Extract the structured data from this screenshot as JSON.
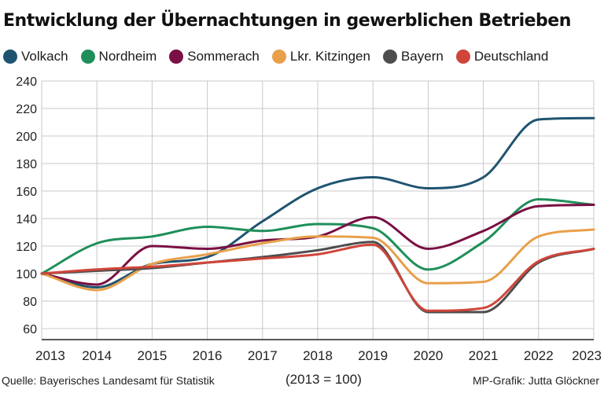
{
  "chart_data": {
    "type": "line",
    "title": "Entwicklung der Übernachtungen in gewerblichen Betrieben",
    "x": [
      "2013",
      "2014",
      "2015",
      "2016",
      "2017",
      "2018",
      "2019",
      "2020",
      "2021",
      "2022",
      "2023"
    ],
    "ylim": [
      60,
      240
    ],
    "yticks": [
      "60",
      "80",
      "100",
      "120",
      "140",
      "160",
      "180",
      "200",
      "220",
      "240"
    ],
    "xlabel": "",
    "ylabel": "",
    "grid": true,
    "series": [
      {
        "name": "Volkach",
        "color": "#1f5470",
        "values": [
          100,
          90,
          107,
          112,
          138,
          162,
          170,
          162,
          170,
          212,
          213
        ]
      },
      {
        "name": "Nordheim",
        "color": "#1f8f5a",
        "values": [
          100,
          122,
          127,
          134,
          131,
          136,
          133,
          103,
          123,
          154,
          150
        ]
      },
      {
        "name": "Sommerach",
        "color": "#7a1044",
        "values": [
          100,
          92,
          120,
          118,
          124,
          127,
          141,
          118,
          131,
          149,
          150
        ]
      },
      {
        "name": "Lkr. Kitzingen",
        "color": "#e8a04a",
        "values": [
          100,
          88,
          107,
          114,
          122,
          127,
          126,
          93,
          94,
          127,
          132
        ]
      },
      {
        "name": "Bayern",
        "color": "#4d4d4d",
        "values": [
          100,
          102,
          104,
          108,
          112,
          117,
          123,
          72,
          72,
          108,
          118
        ]
      },
      {
        "name": "Deutschland",
        "color": "#d0453a",
        "values": [
          100,
          103,
          105,
          108,
          111,
          114,
          121,
          73,
          75,
          109,
          118
        ]
      }
    ]
  },
  "footer": {
    "source": "Quelle: Bayerisches Landesamt für Statistik",
    "baseline": "(2013 = 100)",
    "credit": "MP-Grafik: Jutta Glöckner"
  }
}
